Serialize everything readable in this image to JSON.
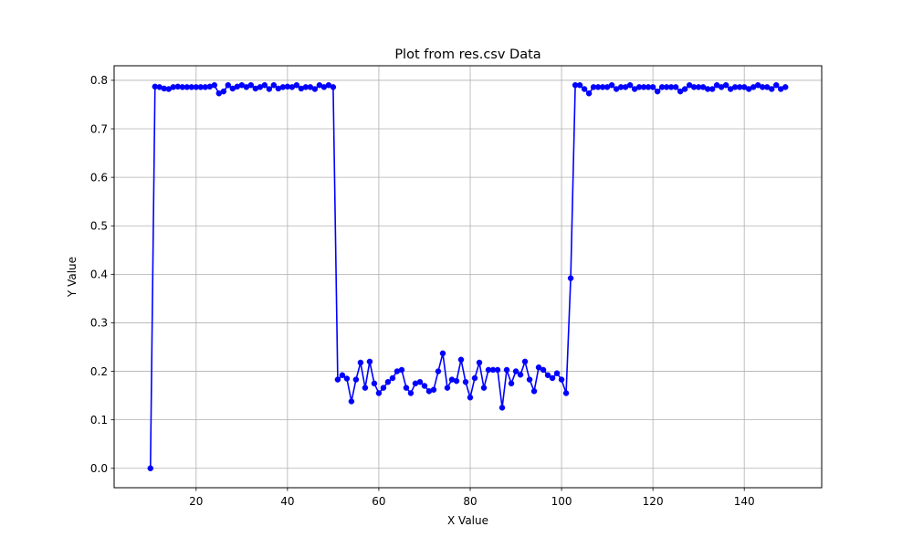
{
  "chart_data": {
    "type": "line",
    "title": "Plot from res.csv Data",
    "xlabel": "X Value",
    "ylabel": "Y Value",
    "xlim": [
      2.05,
      156.95
    ],
    "ylim": [
      -0.04,
      0.83
    ],
    "xticks": [
      20,
      40,
      60,
      80,
      100,
      120,
      140
    ],
    "yticks": [
      0.0,
      0.1,
      0.2,
      0.3,
      0.4,
      0.5,
      0.6,
      0.7,
      0.8
    ],
    "grid": true,
    "line_color": "#0000ff",
    "marker": "circle",
    "series": [
      {
        "x": [
          10,
          11,
          12,
          13,
          14,
          15,
          16,
          17,
          18,
          19,
          20,
          21,
          22,
          23,
          24,
          25,
          26,
          27,
          28,
          29,
          30,
          31,
          32,
          33,
          34,
          35,
          36,
          37,
          38,
          39,
          40,
          41,
          42,
          43,
          44,
          45,
          46,
          47,
          48,
          49,
          50,
          51,
          52,
          53,
          54,
          55,
          56,
          57,
          58,
          59,
          60,
          61,
          62,
          63,
          64,
          65,
          66,
          67,
          68,
          69,
          70,
          71,
          72,
          73,
          74,
          75,
          76,
          77,
          78,
          79,
          80,
          81,
          82,
          83,
          84,
          85,
          86,
          87,
          88,
          89,
          90,
          91,
          92,
          93,
          94,
          95,
          96,
          97,
          98,
          99,
          100,
          101,
          102,
          103,
          104,
          105,
          106,
          107,
          108,
          109,
          110,
          111,
          112,
          113,
          114,
          115,
          116,
          117,
          118,
          119,
          120,
          121,
          122,
          123,
          124,
          125,
          126,
          127,
          128,
          129,
          130,
          131,
          132,
          133,
          134,
          135,
          136,
          137,
          138,
          139,
          140,
          141,
          142,
          143,
          144,
          145,
          146,
          147,
          148,
          149
        ],
        "y": [
          0.0,
          0.787,
          0.786,
          0.783,
          0.782,
          0.786,
          0.787,
          0.786,
          0.786,
          0.786,
          0.786,
          0.786,
          0.786,
          0.787,
          0.79,
          0.773,
          0.777,
          0.79,
          0.783,
          0.787,
          0.79,
          0.786,
          0.79,
          0.783,
          0.786,
          0.79,
          0.782,
          0.79,
          0.783,
          0.786,
          0.787,
          0.786,
          0.79,
          0.783,
          0.786,
          0.786,
          0.782,
          0.79,
          0.786,
          0.79,
          0.786,
          0.183,
          0.192,
          0.185,
          0.138,
          0.183,
          0.218,
          0.166,
          0.22,
          0.175,
          0.155,
          0.166,
          0.178,
          0.186,
          0.2,
          0.203,
          0.166,
          0.155,
          0.175,
          0.178,
          0.17,
          0.159,
          0.162,
          0.2,
          0.237,
          0.166,
          0.183,
          0.18,
          0.224,
          0.178,
          0.146,
          0.186,
          0.218,
          0.166,
          0.203,
          0.203,
          0.203,
          0.125,
          0.203,
          0.175,
          0.2,
          0.193,
          0.22,
          0.183,
          0.159,
          0.208,
          0.203,
          0.192,
          0.186,
          0.196,
          0.183,
          0.155,
          0.392,
          0.79,
          0.79,
          0.782,
          0.773,
          0.786,
          0.786,
          0.786,
          0.786,
          0.79,
          0.782,
          0.786,
          0.786,
          0.79,
          0.782,
          0.786,
          0.786,
          0.786,
          0.786,
          0.777,
          0.786,
          0.786,
          0.786,
          0.786,
          0.777,
          0.782,
          0.79,
          0.786,
          0.786,
          0.786,
          0.782,
          0.782,
          0.79,
          0.786,
          0.79,
          0.782,
          0.786,
          0.786,
          0.786,
          0.782,
          0.786,
          0.79,
          0.786,
          0.786,
          0.782,
          0.79,
          0.782,
          0.786
        ]
      }
    ]
  }
}
